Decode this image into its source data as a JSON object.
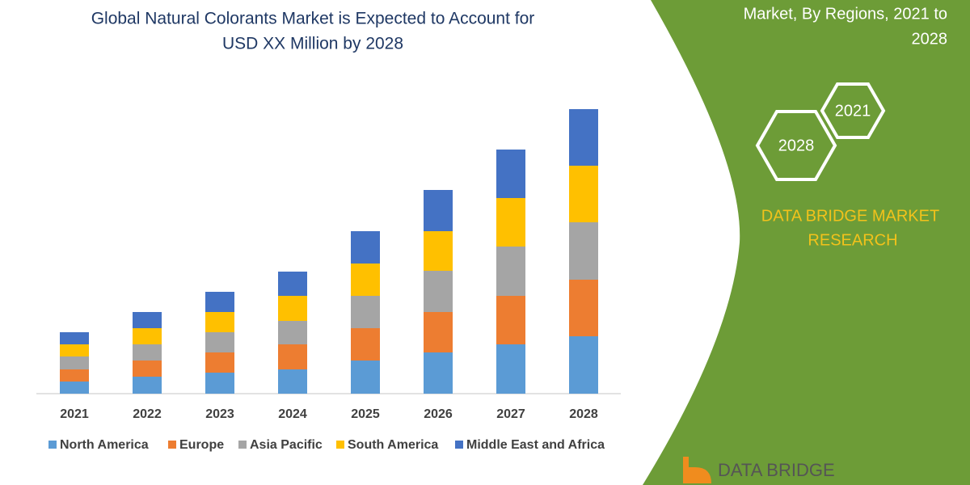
{
  "chart_data": {
    "type": "stacked_bar",
    "title": "Global Natural Colorants Market is Expected to Account for",
    "subtitle": "USD XX Million by 2028",
    "categories": [
      "2021",
      "2022",
      "2023",
      "2024",
      "2025",
      "2026",
      "2027",
      "2028"
    ],
    "series": [
      {
        "name": "North America",
        "color": "#5b9bd5",
        "values": [
          15,
          21,
          26,
          30,
          41,
          51,
          61,
          71
        ]
      },
      {
        "name": "Europe",
        "color": "#ed7d31",
        "values": [
          15,
          20,
          25,
          31,
          40,
          50,
          60,
          70
        ]
      },
      {
        "name": "Asia Pacific",
        "color": "#a5a5a5",
        "values": [
          16,
          20,
          25,
          29,
          40,
          51,
          61,
          71
        ]
      },
      {
        "name": "South America",
        "color": "#ffc000",
        "values": [
          15,
          20,
          25,
          31,
          40,
          49,
          60,
          70
        ]
      },
      {
        "name": "Middle East and Africa",
        "color": "#4472c4",
        "values": [
          15,
          20,
          25,
          30,
          40,
          51,
          60,
          70
        ]
      }
    ]
  },
  "panel": {
    "heading": [
      "Market, By Regions, 2021 to",
      "2028"
    ],
    "hexagons": [
      "2021",
      "2028"
    ],
    "brand": [
      "DATA BRIDGE MARKET",
      "RESEARCH"
    ],
    "logo": "DATA BRIDGE"
  }
}
